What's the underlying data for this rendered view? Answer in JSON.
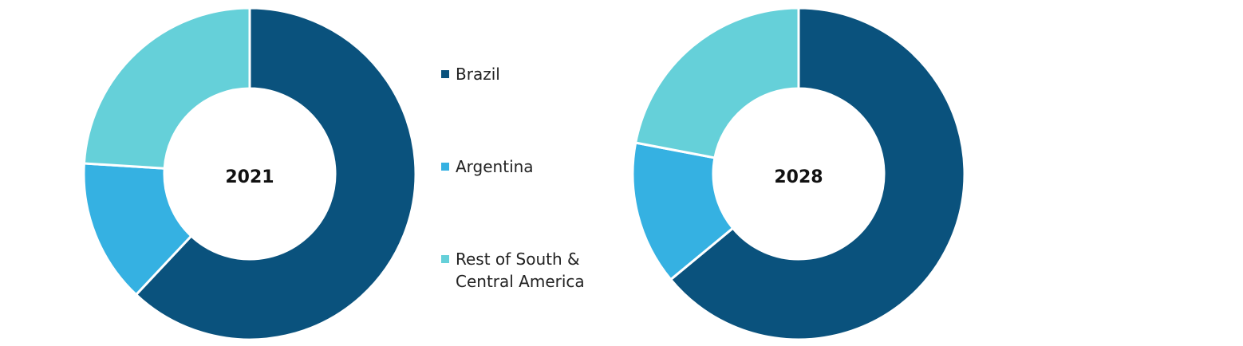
{
  "chart_data": [
    {
      "type": "donut",
      "title": "2021",
      "legend": "right",
      "categories": [
        "Brazil",
        "Argentina",
        "Rest of South & Central America"
      ],
      "values": [
        62,
        14,
        24
      ],
      "colors": [
        "#0a527d",
        "#35b1e2",
        "#65d0d9"
      ]
    },
    {
      "type": "donut",
      "title": "2028",
      "categories": [
        "Brazil",
        "Argentina",
        "Rest of South & Central America"
      ],
      "values": [
        64,
        14,
        22
      ],
      "colors": [
        "#0a527d",
        "#35b1e2",
        "#65d0d9"
      ]
    }
  ]
}
